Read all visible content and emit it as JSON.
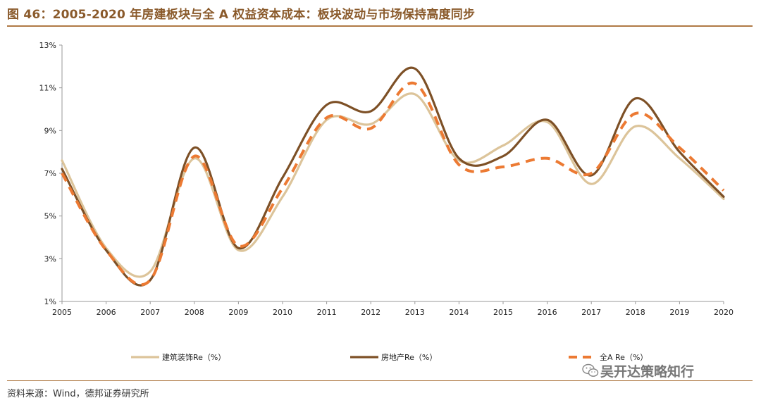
{
  "title": "图 46：2005-2020 年房建板块与全 A 权益资本成本：板块波动与市场保持高度同步",
  "source": "资料来源：Wind，德邦证券研究所",
  "watermark": "吴开达策略知行",
  "colors": {
    "title": "#8a5a2b",
    "rule": "#b07a45",
    "series_construction": "#dcc49a",
    "series_realestate": "#7d5026",
    "series_all_a": "#ec7a33"
  },
  "chart_data": {
    "type": "line",
    "x": [
      "2005",
      "2006",
      "2007",
      "2008",
      "2009",
      "2010",
      "2011",
      "2012",
      "2013",
      "2014",
      "2015",
      "2016",
      "2017",
      "2018",
      "2019",
      "2020"
    ],
    "ylim": [
      1,
      13
    ],
    "yticks": [
      "1%",
      "3%",
      "5%",
      "7%",
      "9%",
      "11%",
      "13%"
    ],
    "ytick_values": [
      1,
      3,
      5,
      7,
      9,
      11,
      13
    ],
    "xlabel": "",
    "ylabel": "",
    "legend_position": "bottom",
    "grid": false,
    "series": [
      {
        "name": "建筑装饰Re（%）",
        "style": "solid",
        "values": [
          7.6,
          3.5,
          2.4,
          7.7,
          3.4,
          5.9,
          9.5,
          9.3,
          10.7,
          7.6,
          8.3,
          9.4,
          6.5,
          9.2,
          7.7,
          5.8
        ]
      },
      {
        "name": "房地产Re（%）",
        "style": "solid",
        "values": [
          7.2,
          3.4,
          2.0,
          8.2,
          3.5,
          6.8,
          10.2,
          9.9,
          11.9,
          7.7,
          7.8,
          9.5,
          6.9,
          10.5,
          8.0,
          5.9
        ]
      },
      {
        "name": "全A Re（%）",
        "style": "dashed",
        "values": [
          7.0,
          3.4,
          2.0,
          7.8,
          3.6,
          6.3,
          9.6,
          9.1,
          11.2,
          7.4,
          7.3,
          7.7,
          7.0,
          9.8,
          8.2,
          6.2
        ]
      }
    ]
  }
}
